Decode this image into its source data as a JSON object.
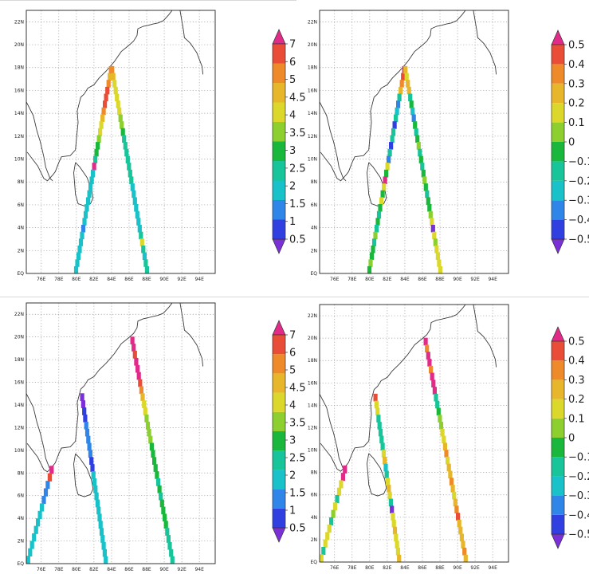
{
  "colors": [
    "#7b2fd6",
    "#2f3fe0",
    "#2f86e8",
    "#19c1c9",
    "#18c49a",
    "#19b83c",
    "#8ccf2e",
    "#dcd82b",
    "#e7b62a",
    "#ee8a2a",
    "#e94d37",
    "#e02c88"
  ],
  "scales": {
    "abs": {
      "labels": [
        "7",
        "6",
        "5",
        "4.5",
        "4",
        "3.5",
        "3",
        "2.5",
        "2",
        "1.5",
        "1",
        "0.5"
      ],
      "min": 0.5,
      "max": 7
    },
    "diff": {
      "labels": [
        "0.5",
        "0.4",
        "0.3",
        "0.2",
        "0.1",
        "0",
        "−0.1",
        "−0.2",
        "−0.3",
        "−0.4",
        "−0.5"
      ],
      "min": -0.5,
      "max": 0.5
    }
  },
  "axes": {
    "x_ticks": [
      "76E",
      "78E",
      "80E",
      "82E",
      "84E",
      "86E",
      "88E",
      "90E",
      "92E",
      "94E"
    ],
    "y_ticks": [
      "EQ",
      "2N",
      "4N",
      "6N",
      "8N",
      "10N",
      "12N",
      "14N",
      "16N",
      "18N",
      "20N",
      "22N"
    ],
    "lon_range": [
      74.3,
      95.8
    ],
    "lat_range": [
      0,
      23
    ]
  },
  "panels": [
    {
      "id": "top-left",
      "scale": "abs",
      "colorbar_labels": [
        "7",
        "6",
        "5",
        "4.5",
        "4",
        "3.5",
        "3",
        "2.5",
        "2",
        "1.5",
        "1",
        "0.5"
      ],
      "tracks": [
        {
          "from": [
            84.0,
            18.1
          ],
          "to": [
            79.9,
            0.0
          ],
          "values": [
            5.6,
            4.9,
            5.5,
            6.1,
            6.2,
            6.0,
            5.6,
            5.2,
            4.7,
            4.3,
            3.9,
            3.6,
            3.4,
            2.9,
            6.7,
            2.6,
            2.5,
            2.4,
            2.3,
            2.2,
            2.2,
            2.3,
            2.2,
            2.1,
            2.2,
            2.3,
            2.2,
            2.4,
            2.2,
            2.3
          ]
        },
        {
          "from": [
            84.0,
            18.1
          ],
          "to": [
            88.1,
            0.0
          ],
          "values": [
            5.4,
            4.9,
            4.5,
            4.3,
            4.6,
            4.8,
            4.4,
            4.2,
            4.0,
            3.5,
            3.2,
            3.1,
            3.0,
            3.2,
            3.1,
            2.9,
            2.8,
            2.6,
            2.5,
            2.3,
            2.4,
            2.3,
            2.2,
            2.5,
            3.1,
            4.4,
            2.8,
            2.6,
            3.1,
            3.2
          ]
        }
      ]
    },
    {
      "id": "top-right",
      "scale": "diff",
      "colorbar_labels": [
        "0.5",
        "0.4",
        "0.3",
        "0.2",
        "0.1",
        "0",
        "−0.1",
        "−0.2",
        "−0.3",
        "−0.4",
        "−0.5"
      ],
      "tracks": [
        {
          "from": [
            84.0,
            18.1
          ],
          "to": [
            79.9,
            0.0
          ],
          "values": [
            0.45,
            0.38,
            0.3,
            0.2,
            -0.1,
            -0.3,
            -0.2,
            -0.12,
            -0.35,
            -0.12,
            -0.1,
            -0.4,
            -0.12,
            -0.3,
            0.12,
            -0.05,
            0.45,
            0.15,
            -0.05,
            0.15,
            -0.05,
            -0.1,
            -0.05,
            -0.12,
            0.0,
            -0.1,
            -0.05,
            -0.05,
            0.0,
            -0.05
          ]
        },
        {
          "from": [
            84.0,
            18.1
          ],
          "to": [
            88.1,
            0.0
          ],
          "values": [
            0.2,
            0.15,
            0.2,
            0.18,
            -0.1,
            -0.05,
            -0.25,
            -0.3,
            -0.05,
            -0.1,
            -0.05,
            0.0,
            -0.1,
            -0.05,
            -0.12,
            -0.05,
            0.0,
            -0.05,
            -0.1,
            -0.05,
            -0.08,
            0.0,
            0.15,
            -0.45,
            0.12,
            0.05,
            0.1,
            0.15,
            0.1,
            0.1
          ]
        }
      ]
    },
    {
      "id": "bottom-left",
      "scale": "abs",
      "colorbar_labels": [
        "7",
        "6",
        "5",
        "4.5",
        "4",
        "3.5",
        "3",
        "2.5",
        "2",
        "1.5",
        "1",
        "0.5"
      ],
      "tracks": [
        {
          "from": [
            80.6,
            15.0
          ],
          "to": [
            83.4,
            0.0
          ],
          "values": [
            0.9,
            1.0,
            1.2,
            1.4,
            1.6,
            1.8,
            1.9,
            2.0,
            1.8,
            1.3,
            1.5,
            2.2,
            2.3,
            2.4,
            2.5,
            2.6,
            2.4,
            2.5,
            2.3,
            2.4,
            2.5,
            2.4,
            2.6,
            2.5
          ]
        },
        {
          "from": [
            77.3,
            8.6
          ],
          "to": [
            74.4,
            0.0
          ],
          "values": [
            6.7,
            6.0,
            2.0,
            1.8,
            2.1,
            2.3,
            2.4,
            2.2,
            2.3,
            2.5,
            2.4,
            2.6,
            2.5
          ]
        },
        {
          "from": [
            86.3,
            20.0
          ],
          "to": [
            91.0,
            0.0
          ],
          "values": [
            6.5,
            6.8,
            6.3,
            6.8,
            6.7,
            6.6,
            6.4,
            5.8,
            5.0,
            4.6,
            4.3,
            4.2,
            4.0,
            3.9,
            3.8,
            3.6,
            3.5,
            3.4,
            3.3,
            3.3,
            3.2,
            3.3,
            3.2,
            3.4,
            3.3,
            3.6,
            3.3,
            3.2,
            3.2,
            3.0,
            2.9,
            2.8
          ]
        }
      ]
    },
    {
      "id": "bottom-right",
      "scale": "diff",
      "colorbar_labels": [
        "0.5",
        "0.4",
        "0.3",
        "0.2",
        "0.1",
        "0",
        "−0.1",
        "−0.2",
        "−0.3",
        "−0.4",
        "−0.5"
      ],
      "tracks": [
        {
          "from": [
            80.6,
            15.0
          ],
          "to": [
            83.4,
            0.0
          ],
          "values": [
            0.4,
            0.1,
            0.15,
            -0.1,
            -0.1,
            -0.12,
            -0.15,
            -0.1,
            0.15,
            0.2,
            -0.2,
            -0.1,
            0.15,
            0.2,
            0.15,
            -0.1,
            -0.45,
            0.1,
            0.15,
            0.2,
            0.15,
            0.1,
            0.15,
            0.2
          ]
        },
        {
          "from": [
            77.3,
            8.6
          ],
          "to": [
            74.4,
            0.0
          ],
          "values": [
            0.45,
            0.48,
            0.1,
            0.15,
            -0.1,
            0.1,
            0.05,
            -0.1,
            0.15,
            0.1,
            0.15,
            -0.1,
            0.1
          ]
        },
        {
          "from": [
            86.3,
            20.0
          ],
          "to": [
            91.0,
            0.0
          ],
          "values": [
            0.45,
            0.3,
            0.48,
            0.45,
            0.25,
            0.5,
            0.48,
            0.45,
            -0.1,
            -0.12,
            -0.05,
            0.0,
            0.05,
            0.1,
            0.15,
            0.2,
            0.25,
            0.15,
            0.2,
            0.22,
            0.25,
            0.2,
            0.15,
            0.2,
            0.25,
            0.35,
            0.2,
            0.18,
            0.2,
            0.22,
            0.25,
            0.2
          ]
        }
      ]
    }
  ]
}
